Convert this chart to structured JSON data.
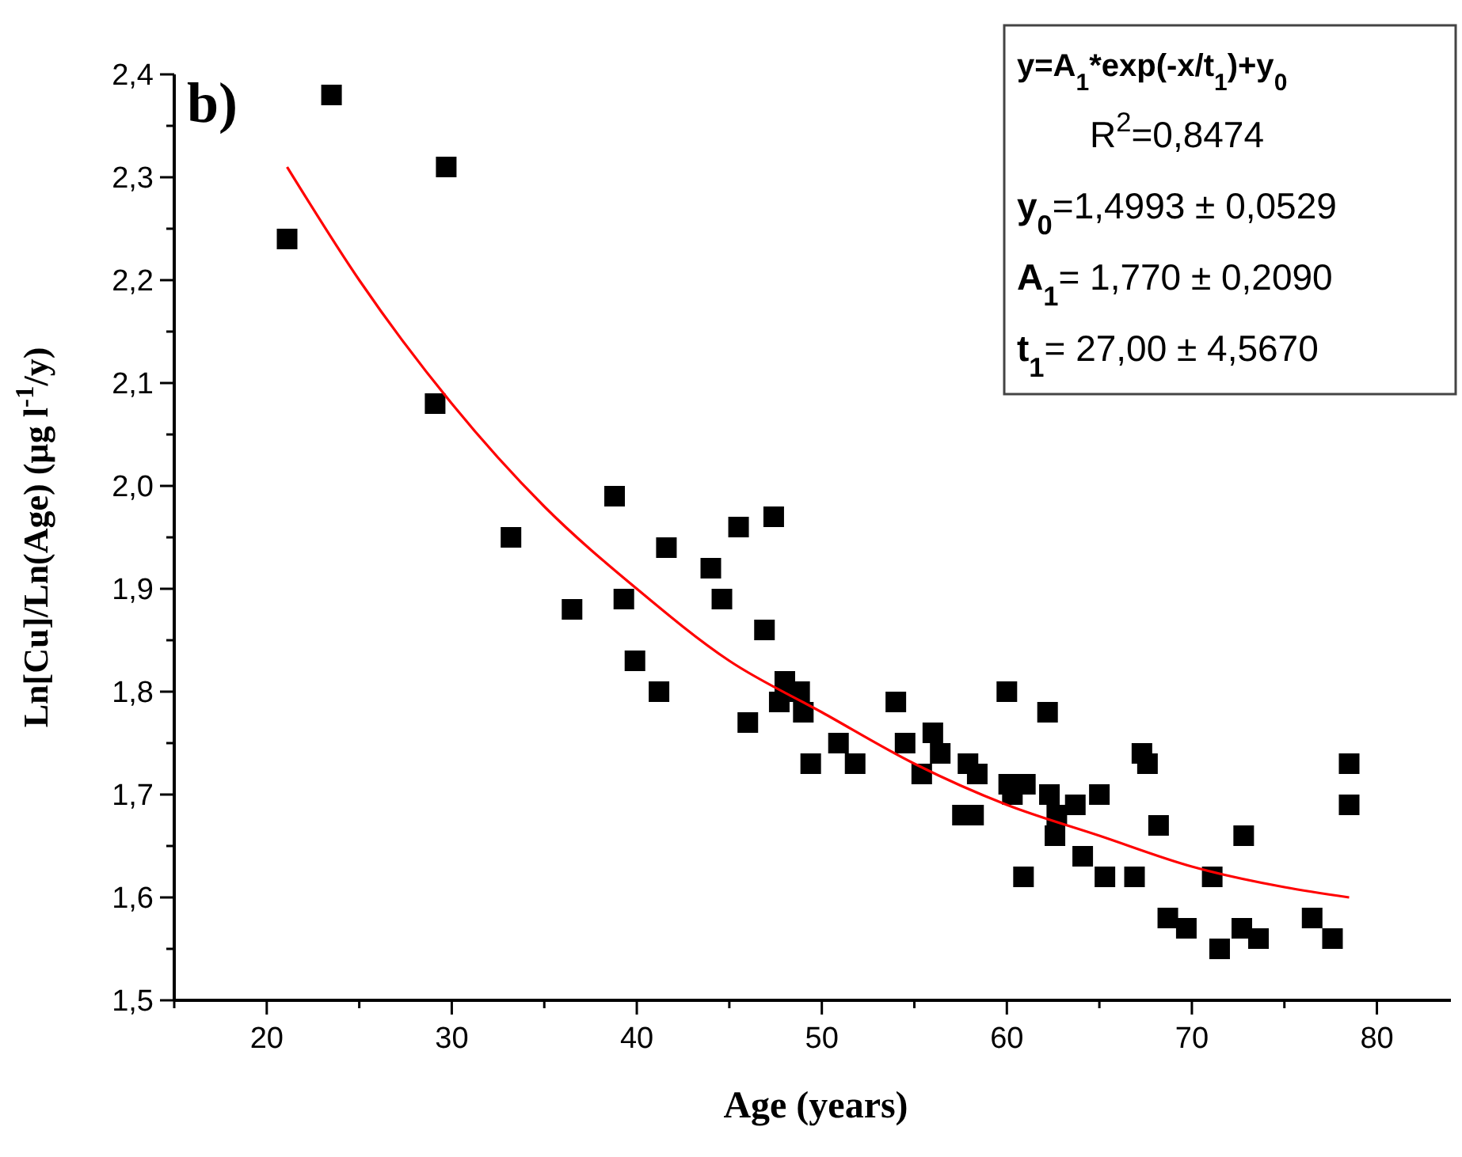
{
  "chart_data": {
    "type": "scatter",
    "title": "b)",
    "xlabel": "Age (years)",
    "ylabel": "Ln[Cu]/Ln(Age) (µg l$^{-1}$/y)",
    "xlim": [
      15,
      84
    ],
    "ylim": [
      1.5,
      2.4
    ],
    "xticks": [
      {
        "value": 15,
        "label": null
      },
      20,
      {
        "value": 25,
        "label": null
      },
      30,
      {
        "value": 35,
        "label": null
      },
      40,
      {
        "value": 45,
        "label": null
      },
      50,
      {
        "value": 55,
        "label": null
      },
      60,
      {
        "value": 65,
        "label": null
      },
      70,
      {
        "value": 75,
        "label": null
      },
      80
    ],
    "yticks": [
      {
        "value": 1.5,
        "label": "1,5"
      },
      {
        "value": 1.55,
        "label": null
      },
      {
        "value": 1.6,
        "label": "1,6"
      },
      {
        "value": 1.65,
        "label": null
      },
      {
        "value": 1.7,
        "label": "1,7"
      },
      {
        "value": 1.75,
        "label": null
      },
      {
        "value": 1.8,
        "label": "1,8"
      },
      {
        "value": 1.85,
        "label": null
      },
      {
        "value": 1.9,
        "label": "1,9"
      },
      {
        "value": 1.95,
        "label": null
      },
      {
        "value": 2.0,
        "label": "2,0"
      },
      {
        "value": 2.05,
        "label": null
      },
      {
        "value": 2.1,
        "label": "2,1"
      },
      {
        "value": 2.15,
        "label": null
      },
      {
        "value": 2.2,
        "label": "2,2"
      },
      {
        "value": 2.25,
        "label": null
      },
      {
        "value": 2.3,
        "label": "2,3"
      },
      {
        "value": 2.35,
        "label": null
      },
      {
        "value": 2.4,
        "label": "2,4"
      }
    ],
    "grid": false,
    "marker": "square",
    "annotations": [
      "y=A$_{1}$*exp(-x/t$_{1}$)+y$_{0}$",
      "R$^{2}$=0,8474",
      "y$_{0}$=1,4993 ± 0,0529",
      "A$_{1}$= 1,770 ± 0,2090",
      "t$_{1}$= 27,00 ± 4,5670"
    ],
    "series": [
      {
        "color": "#000000",
        "x": [
          21.1,
          23.5,
          29.7,
          29.1,
          33.2,
          38.8,
          36.5,
          39.3,
          39.9,
          41.2,
          41.6,
          44.0,
          44.6,
          45.5,
          47.4,
          46.9,
          48.0,
          48.8,
          47.7,
          46.0,
          49.0,
          49.4,
          50.9,
          51.8,
          54.0,
          54.5,
          56.0,
          56.4,
          55.4,
          57.9,
          58.4,
          57.6,
          58.2,
          60.0,
          62.2,
          60.1,
          61.0,
          60.3,
          62.3,
          62.7,
          62.6,
          63.7,
          65.0,
          60.9,
          64.1,
          65.3,
          66.9,
          67.3,
          67.6,
          68.2,
          71.1,
          72.8,
          68.7,
          69.7,
          71.5,
          72.7,
          73.6,
          76.5,
          77.6,
          78.5,
          78.5
        ],
        "values": [
          2.24,
          2.38,
          2.31,
          2.08,
          1.95,
          1.99,
          1.88,
          1.89,
          1.83,
          1.8,
          1.94,
          1.92,
          1.89,
          1.96,
          1.97,
          1.86,
          1.81,
          1.8,
          1.79,
          1.77,
          1.78,
          1.73,
          1.75,
          1.73,
          1.79,
          1.75,
          1.76,
          1.74,
          1.72,
          1.73,
          1.72,
          1.68,
          1.68,
          1.8,
          1.78,
          1.71,
          1.71,
          1.7,
          1.7,
          1.68,
          1.66,
          1.69,
          1.7,
          1.62,
          1.64,
          1.62,
          1.62,
          1.74,
          1.73,
          1.67,
          1.62,
          1.66,
          1.58,
          1.57,
          1.55,
          1.57,
          1.56,
          1.58,
          1.56,
          1.73,
          1.69
        ]
      },
      {
        "type": "line",
        "color": "#ff0000",
        "marker": "none",
        "line_style": "solid",
        "x": [
          21.1,
          25,
          30,
          35,
          40,
          45,
          50,
          55,
          60,
          65,
          70,
          75,
          78.5
        ],
        "values": [
          2.31,
          2.2,
          2.08,
          1.98,
          1.9,
          1.83,
          1.78,
          1.73,
          1.69,
          1.66,
          1.63,
          1.61,
          1.6
        ]
      }
    ]
  }
}
